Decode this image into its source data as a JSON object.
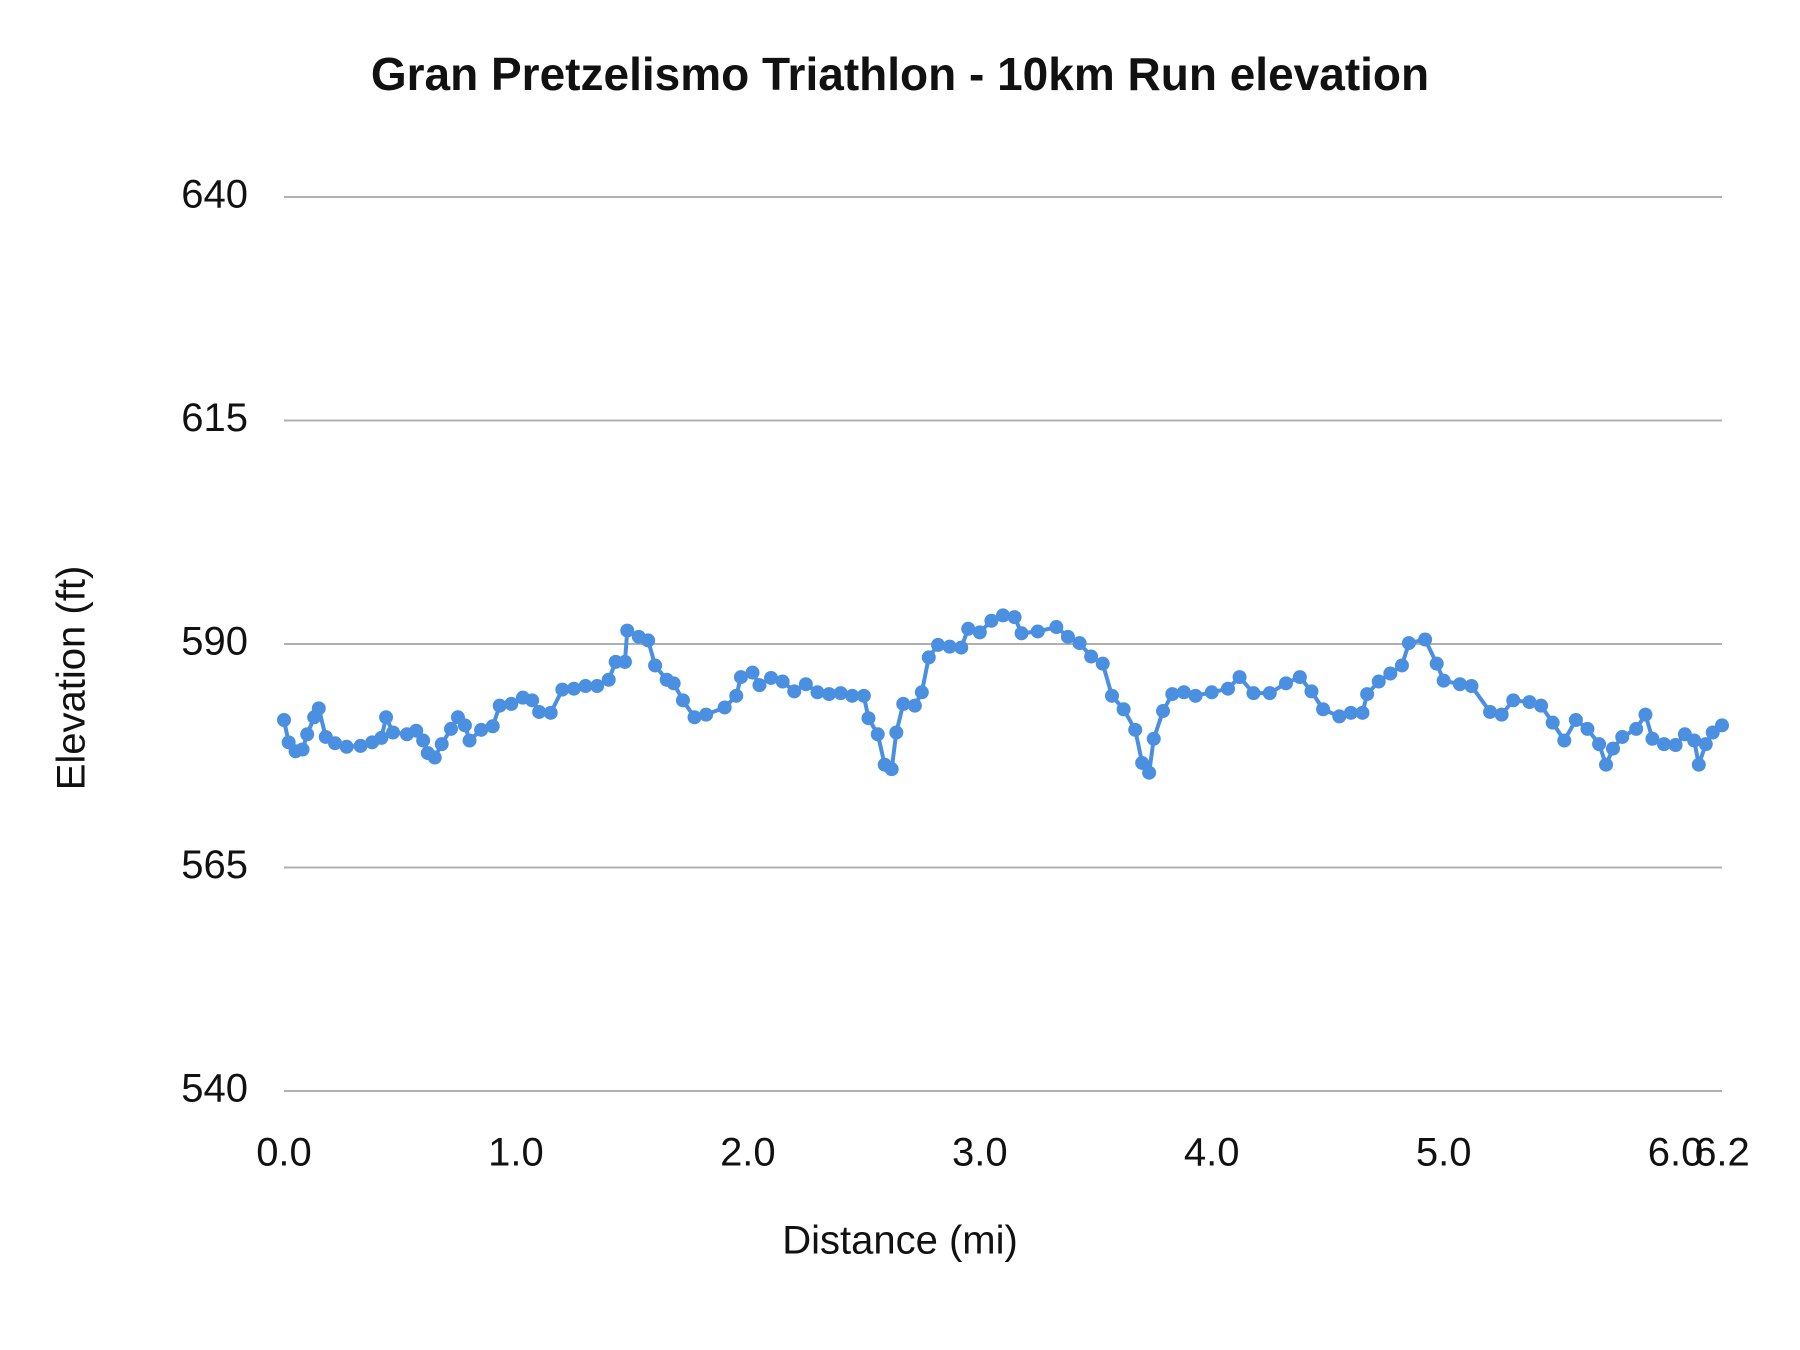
{
  "chart_data": {
    "type": "line",
    "title": "Gran Pretzelismo Triathlon - 10km Run elevation",
    "x_label": "Distance (mi)",
    "y_label": "Elevation (ft)",
    "x": [
      0.0,
      0.02,
      0.05,
      0.08,
      0.1,
      0.13,
      0.15,
      0.18,
      0.22,
      0.27,
      0.33,
      0.38,
      0.42,
      0.44,
      0.47,
      0.53,
      0.57,
      0.6,
      0.62,
      0.65,
      0.68,
      0.72,
      0.75,
      0.78,
      0.8,
      0.85,
      0.9,
      0.93,
      0.98,
      1.03,
      1.07,
      1.1,
      1.15,
      1.2,
      1.25,
      1.3,
      1.35,
      1.4,
      1.43,
      1.47,
      1.48,
      1.53,
      1.57,
      1.6,
      1.65,
      1.68,
      1.72,
      1.77,
      1.82,
      1.9,
      1.95,
      1.97,
      2.02,
      2.05,
      2.1,
      2.15,
      2.2,
      2.25,
      2.3,
      2.35,
      2.4,
      2.45,
      2.5,
      2.52,
      2.56,
      2.59,
      2.62,
      2.64,
      2.67,
      2.72,
      2.75,
      2.78,
      2.82,
      2.87,
      2.92,
      2.95,
      3.0,
      3.05,
      3.1,
      3.15,
      3.18,
      3.25,
      3.33,
      3.38,
      3.43,
      3.48,
      3.53,
      3.57,
      3.62,
      3.67,
      3.7,
      3.73,
      3.75,
      3.79,
      3.83,
      3.88,
      3.93,
      4.0,
      4.07,
      4.12,
      4.18,
      4.25,
      4.32,
      4.38,
      4.43,
      4.48,
      4.55,
      4.6,
      4.65,
      4.67,
      4.72,
      4.77,
      4.82,
      4.85,
      4.92,
      4.97,
      5.0,
      5.07,
      5.12,
      5.2,
      5.25,
      5.3,
      5.37,
      5.42,
      5.47,
      5.52,
      5.57,
      5.62,
      5.67,
      5.7,
      5.73,
      5.77,
      5.83,
      5.87,
      5.9,
      5.95,
      6.0,
      6.04,
      6.08,
      6.1,
      6.13,
      6.16,
      6.2
    ],
    "series": [
      {
        "name": "Elevation (ft)",
        "color": "#4a8fe0",
        "values": [
          581.5,
          579,
          578,
          578.2,
          579.9,
          581.8,
          582.8,
          579.6,
          578.9,
          578.5,
          578.6,
          579,
          579.5,
          581.8,
          580.1,
          579.9,
          580.3,
          579.2,
          577.8,
          577.3,
          578.8,
          580.5,
          581.8,
          580.9,
          579.2,
          580.4,
          580.8,
          583.1,
          583.3,
          584,
          583.7,
          582.4,
          582.3,
          584.9,
          585,
          585.3,
          585.3,
          586,
          588,
          588,
          591.5,
          590.8,
          590.4,
          587.6,
          586,
          585.6,
          583.7,
          581.8,
          582.1,
          582.9,
          584.2,
          586.3,
          586.8,
          585.4,
          586.2,
          585.8,
          584.7,
          585.5,
          584.6,
          584.4,
          584.5,
          584.2,
          584.2,
          581.7,
          579.9,
          576.5,
          576,
          580.1,
          583.3,
          583.1,
          584.6,
          588.5,
          589.9,
          589.7,
          589.6,
          591.7,
          591.3,
          592.6,
          593.2,
          593,
          591.2,
          591.4,
          591.9,
          590.8,
          590.1,
          588.6,
          587.8,
          584.2,
          582.7,
          580.4,
          576.7,
          575.6,
          579.4,
          582.5,
          584.4,
          584.6,
          584.2,
          584.6,
          585,
          586.3,
          584.5,
          584.5,
          585.6,
          586.3,
          584.7,
          582.7,
          581.9,
          582.3,
          582.3,
          584.4,
          585.8,
          586.7,
          587.6,
          590.1,
          590.5,
          587.8,
          585.9,
          585.5,
          585.3,
          582.4,
          582.1,
          583.7,
          583.5,
          583.1,
          581.2,
          579.2,
          581.5,
          580.5,
          578.8,
          576.5,
          578.3,
          579.6,
          580.5,
          582.1,
          579.4,
          578.8,
          578.7,
          579.9,
          579.2,
          576.5,
          578.8,
          580.1,
          580.9
        ]
      }
    ],
    "xlim": [
      0,
      6.2
    ],
    "xticks": [
      {
        "value": 0,
        "label": "0.0"
      },
      {
        "value": 1,
        "label": "1.0"
      },
      {
        "value": 2,
        "label": "2.0"
      },
      {
        "value": 3,
        "label": "3.0"
      },
      {
        "value": 4,
        "label": "4.0"
      },
      {
        "value": 5,
        "label": "5.0"
      },
      {
        "value": 6,
        "label": "6.0"
      },
      {
        "value": 6.2,
        "label": "6.2"
      }
    ],
    "ylim": [
      540,
      640
    ],
    "yticks": [
      540,
      565,
      590,
      615,
      640
    ],
    "grid": true
  }
}
